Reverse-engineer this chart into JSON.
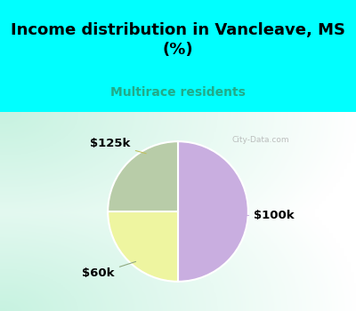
{
  "title": "Income distribution in Vancleave, MS\n(%)",
  "subtitle": "Multirace residents",
  "slices": [
    {
      "label": "$100k",
      "value": 50,
      "color": "#c9aee0"
    },
    {
      "label": "$125k",
      "value": 25,
      "color": "#eef5a0"
    },
    {
      "label": "$60k",
      "value": 25,
      "color": "#b8cca8"
    }
  ],
  "bg_color": "#00ffff",
  "chart_bg": "#cff0e4",
  "title_fontsize": 13,
  "subtitle_color": "#22aa88",
  "subtitle_fontsize": 10,
  "watermark": "City-Data.com",
  "label_fontsize": 9.5
}
